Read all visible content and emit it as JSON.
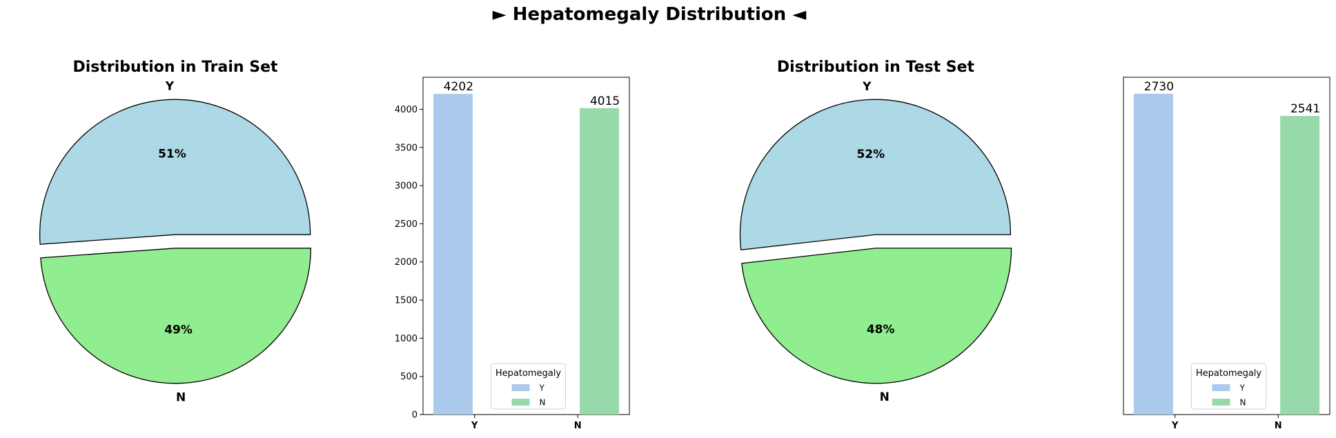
{
  "figure": {
    "title": "► Hepatomegaly Distribution ◄"
  },
  "colors": {
    "pie_y": "#add8e6",
    "pie_n": "#90ee90",
    "bar_y": "#abc9ea",
    "bar_n": "#98d9a9",
    "edge": "#000000"
  },
  "chart_data": [
    {
      "type": "pie",
      "title": "Distribution in Train Set",
      "categories": [
        "Y",
        "N"
      ],
      "values": [
        4202,
        4015
      ],
      "percent_labels": [
        "51%",
        "49%"
      ],
      "explode": [
        0.05,
        0.05
      ],
      "start_angle_deg": 0
    },
    {
      "type": "bar",
      "title": "",
      "categories": [
        "Y",
        "N"
      ],
      "values": [
        4202,
        4015
      ],
      "value_labels": [
        "4202",
        "4015"
      ],
      "ylim": [
        0,
        4420
      ],
      "yticks": [
        0,
        500,
        1000,
        1500,
        2000,
        2500,
        3000,
        3500,
        4000
      ],
      "show_yticks": true,
      "legend": {
        "title": "Hepatomegaly",
        "entries": [
          "Y",
          "N"
        ],
        "placement": "lower-center"
      }
    },
    {
      "type": "pie",
      "title": "Distribution in Test Set",
      "categories": [
        "Y",
        "N"
      ],
      "values": [
        2730,
        2541
      ],
      "percent_labels": [
        "52%",
        "48%"
      ],
      "explode": [
        0.05,
        0.05
      ],
      "start_angle_deg": 0
    },
    {
      "type": "bar",
      "title": "",
      "categories": [
        "Y",
        "N"
      ],
      "values": [
        2730,
        2541
      ],
      "value_labels": [
        "2730",
        "2541"
      ],
      "ylim": [
        0,
        2870
      ],
      "yticks": [],
      "show_yticks": false,
      "legend": {
        "title": "Hepatomegaly",
        "entries": [
          "Y",
          "N"
        ],
        "placement": "lower-center"
      }
    }
  ]
}
